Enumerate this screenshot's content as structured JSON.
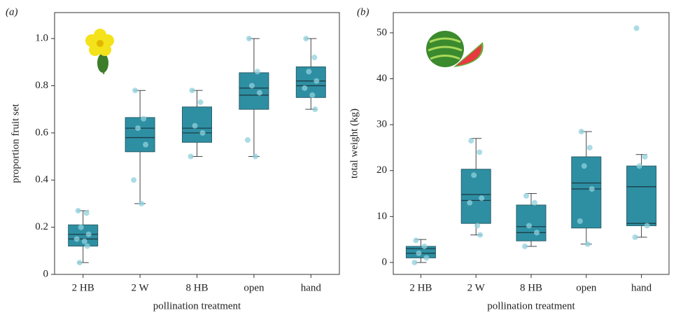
{
  "chart_data": [
    {
      "type": "box",
      "panel_label": "(a)",
      "xlabel": "pollination treatment",
      "ylabel": "proportion fruit set",
      "categories": [
        "2 HB",
        "2 W",
        "8 HB",
        "open",
        "hand"
      ],
      "ylim": [
        0,
        1.11
      ],
      "yticks": [
        {
          "value": 0,
          "label": "0"
        },
        0.2,
        0.4,
        0.6,
        0.8,
        {
          "value": 1,
          "label": "1.0"
        }
      ],
      "color": "#2e8fa3",
      "boxes": [
        {
          "whisker_low": 0.05,
          "q1": 0.12,
          "median": 0.15,
          "mean": 0.17,
          "q3": 0.21,
          "whisker_high": 0.27
        },
        {
          "whisker_low": 0.3,
          "q1": 0.52,
          "median": 0.58,
          "mean": 0.62,
          "q3": 0.665,
          "whisker_high": 0.78
        },
        {
          "whisker_low": 0.5,
          "q1": 0.56,
          "median": 0.6,
          "mean": 0.62,
          "q3": 0.71,
          "whisker_high": 0.78
        },
        {
          "whisker_low": 0.5,
          "q1": 0.7,
          "median": 0.76,
          "mean": 0.79,
          "q3": 0.855,
          "whisker_high": 1
        },
        {
          "whisker_low": 0.7,
          "q1": 0.75,
          "median": 0.8,
          "mean": 0.82,
          "q3": 0.88,
          "whisker_high": 1
        }
      ],
      "points": [
        [
          0.27,
          0.26,
          0.2,
          0.17,
          0.15,
          0.14,
          0.12,
          0.05
        ],
        [
          0.78,
          0.66,
          0.62,
          0.55,
          0.4,
          0.3
        ],
        [
          0.78,
          0.73,
          0.63,
          0.6,
          0.5
        ],
        [
          1,
          0.86,
          0.8,
          0.77,
          0.57,
          0.5
        ],
        [
          1,
          0.92,
          0.86,
          0.82,
          0.79,
          0.76,
          0.7
        ]
      ]
    },
    {
      "type": "box",
      "panel_label": "(b)",
      "xlabel": "pollination treatment",
      "ylabel": "total weight (kg)",
      "categories": [
        "2 HB",
        "2 W",
        "8 HB",
        "open",
        "hand"
      ],
      "ylim": [
        -2.6,
        54.4
      ],
      "yticks": [
        0,
        10,
        20,
        30,
        40,
        50
      ],
      "color": "#2e8fa3",
      "boxes": [
        {
          "whisker_low": 0,
          "q1": 1,
          "median": 2,
          "mean": 3,
          "q3": 3.5,
          "whisker_high": 5
        },
        {
          "whisker_low": 6,
          "q1": 8.5,
          "median": 13.5,
          "mean": 14.8,
          "q3": 20.3,
          "whisker_high": 27
        },
        {
          "whisker_low": 3.5,
          "q1": 4.7,
          "median": 6.5,
          "mean": 7.8,
          "q3": 12.5,
          "whisker_high": 15
        },
        {
          "whisker_low": 4,
          "q1": 7.5,
          "median": 16,
          "mean": 17.3,
          "q3": 23,
          "whisker_high": 28.5
        },
        {
          "whisker_low": 5.5,
          "q1": 8,
          "median": 8.5,
          "mean": 16.5,
          "q3": 21,
          "whisker_high": 23.5
        }
      ],
      "points": [
        [
          4.8,
          3.5,
          2,
          1,
          0
        ],
        [
          26.5,
          24,
          19,
          14,
          13,
          8,
          6
        ],
        [
          14.5,
          13,
          8,
          6.5,
          3.5
        ],
        [
          28.5,
          25,
          21,
          16,
          9,
          4
        ],
        [
          51,
          23,
          21,
          8,
          5.5
        ]
      ]
    }
  ]
}
